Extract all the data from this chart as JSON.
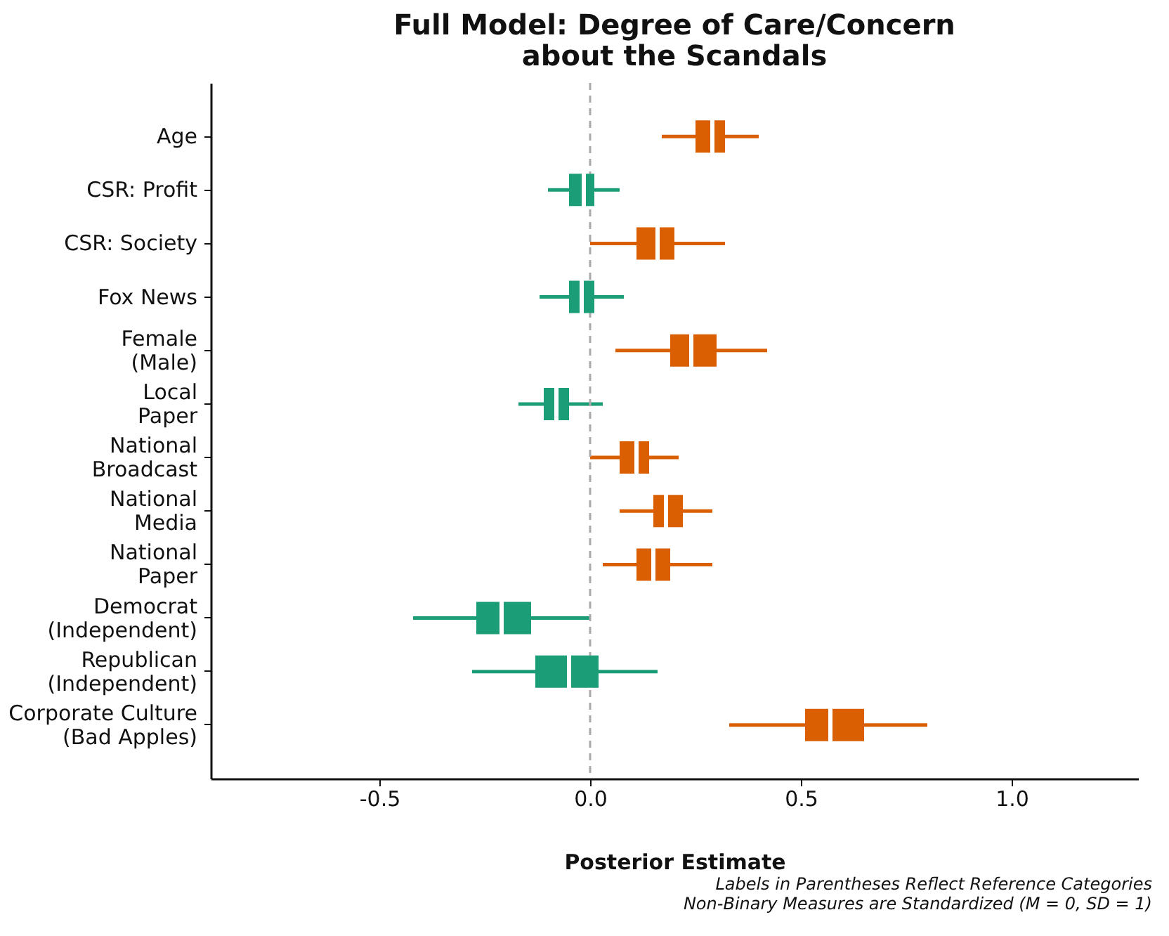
{
  "chart_data": {
    "type": "box",
    "orientation": "horizontal",
    "title": "Full Model: Degree of Care/Concern\nabout the Scandals",
    "xlabel": "Posterior Estimate",
    "categories": [
      "Age",
      "CSR: Profit",
      "CSR: Society",
      "Fox News",
      "Female\n(Male)",
      "Local\nPaper",
      "National\nBroadcast",
      "National\nMedia",
      "National\nPaper",
      "Democrat\n(Independent)",
      "Republican\n(Independent)",
      "Corporate Culture\n(Bad Apples)"
    ],
    "series": [
      {
        "color": "#d95f02",
        "boxes": [
          {
            "low": 0.17,
            "q1": 0.25,
            "median": 0.29,
            "q3": 0.32,
            "high": 0.4
          },
          null,
          {
            "low": 0.0,
            "q1": 0.11,
            "median": 0.16,
            "q3": 0.2,
            "high": 0.32
          },
          null,
          {
            "low": 0.06,
            "q1": 0.19,
            "median": 0.24,
            "q3": 0.3,
            "high": 0.42
          },
          null,
          {
            "low": 0.0,
            "q1": 0.07,
            "median": 0.11,
            "q3": 0.14,
            "high": 0.21
          },
          {
            "low": 0.07,
            "q1": 0.15,
            "median": 0.18,
            "q3": 0.22,
            "high": 0.29
          },
          {
            "low": 0.03,
            "q1": 0.11,
            "median": 0.15,
            "q3": 0.19,
            "high": 0.29
          },
          null,
          null,
          {
            "low": 0.33,
            "q1": 0.51,
            "median": 0.57,
            "q3": 0.65,
            "high": 0.8
          }
        ]
      },
      {
        "color": "#1b9e77",
        "boxes": [
          null,
          {
            "low": -0.1,
            "q1": -0.05,
            "median": -0.015,
            "q3": 0.01,
            "high": 0.07
          },
          null,
          {
            "low": -0.12,
            "q1": -0.05,
            "median": -0.02,
            "q3": 0.01,
            "high": 0.08
          },
          null,
          {
            "low": -0.17,
            "q1": -0.11,
            "median": -0.08,
            "q3": -0.05,
            "high": 0.03
          },
          null,
          null,
          null,
          {
            "low": -0.42,
            "q1": -0.27,
            "median": -0.21,
            "q3": -0.14,
            "high": 0.0
          },
          {
            "low": -0.28,
            "q1": -0.13,
            "median": -0.05,
            "q3": 0.02,
            "high": 0.16
          },
          null
        ]
      }
    ],
    "xlim": [
      -0.9,
      1.3
    ],
    "xticks": [
      -0.5,
      {
        "value": 0,
        "label": "0.0"
      },
      0.5,
      {
        "value": 1,
        "label": "1.0"
      }
    ],
    "ref_lines": [
      {
        "axis": "x",
        "value": 0,
        "color": "#aaaaaa",
        "line_style": "dashed"
      }
    ],
    "annotations": [
      "Labels in Parentheses Reflect Reference Categories",
      "Non-Binary Measures are Standardized (M = 0, SD = 1)"
    ]
  }
}
